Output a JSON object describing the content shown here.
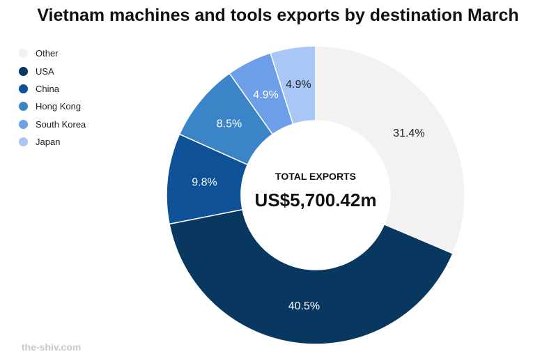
{
  "chart_data": {
    "type": "pie",
    "title": "Vietnam machines and tools exports by destination March",
    "categories": [
      "Other",
      "USA",
      "China",
      "Hong Kong",
      "South Korea",
      "Japan"
    ],
    "values": [
      31.4,
      40.5,
      9.8,
      8.5,
      4.9,
      4.9
    ],
    "value_labels": [
      "31.4%",
      "40.5%",
      "9.8%",
      "8.5%",
      "4.9%",
      "4.9%"
    ],
    "colors": [
      "#f2f2f2",
      "#08375f",
      "#0e5196",
      "#3a84c7",
      "#6d9ee9",
      "#a8c6f6"
    ],
    "label_colors": [
      "#222222",
      "#ffffff",
      "#ffffff",
      "#ffffff",
      "#ffffff",
      "#222222"
    ],
    "legend_position": "top-left",
    "center_label": "TOTAL EXPORTS",
    "center_value": "US$5,700.42m"
  },
  "watermark": "the-shiv.com"
}
